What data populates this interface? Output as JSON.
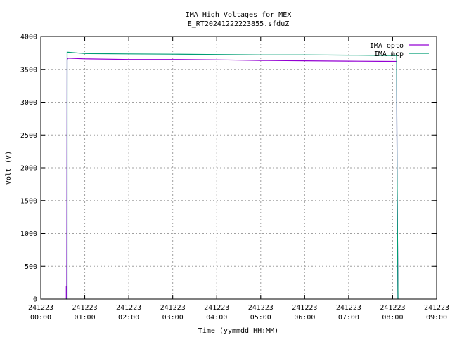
{
  "chart_data": {
    "type": "line",
    "title": "IMA High Voltages for MEX",
    "subtitle": "E_RT20241222223855.sfduZ",
    "xlabel": "Time (yymmdd HH:MM)",
    "ylabel": "Volt (V)",
    "xlim": [
      0,
      9
    ],
    "ylim": [
      0,
      4000
    ],
    "grid": true,
    "legend_position": "top-right",
    "x_ticks": [
      {
        "value": 0,
        "date": "241223",
        "time": "00:00"
      },
      {
        "value": 1,
        "date": "241223",
        "time": "01:00"
      },
      {
        "value": 2,
        "date": "241223",
        "time": "02:00"
      },
      {
        "value": 3,
        "date": "241223",
        "time": "03:00"
      },
      {
        "value": 4,
        "date": "241223",
        "time": "04:00"
      },
      {
        "value": 5,
        "date": "241223",
        "time": "05:00"
      },
      {
        "value": 6,
        "date": "241223",
        "time": "06:00"
      },
      {
        "value": 7,
        "date": "241223",
        "time": "07:00"
      },
      {
        "value": 8,
        "date": "241223",
        "time": "08:00"
      },
      {
        "value": 9,
        "date": "241223",
        "time": "09:00"
      }
    ],
    "y_ticks": [
      0,
      500,
      1000,
      1500,
      2000,
      2500,
      3000,
      3500,
      4000
    ],
    "series": [
      {
        "name": "IMA opto",
        "color": "#9400d3",
        "x": [
          0.58,
          0.58,
          0.59,
          0.59,
          0.6,
          0.62,
          1.0,
          2.0,
          3.0,
          4.0,
          5.0,
          6.0,
          7.0,
          8.0,
          8.09,
          8.1,
          8.12
        ],
        "y": [
          0,
          190,
          190,
          0,
          3650,
          3670,
          3660,
          3650,
          3650,
          3645,
          3635,
          3630,
          3625,
          3620,
          3620,
          2000,
          0
        ]
      },
      {
        "name": "IMA mcp",
        "color": "#009e73",
        "x": [
          0.58,
          0.6,
          0.6,
          0.62,
          1.0,
          2.0,
          3.0,
          4.0,
          5.0,
          6.0,
          7.0,
          8.0,
          8.09,
          8.1,
          8.12
        ],
        "y": [
          0,
          0,
          3760,
          3760,
          3740,
          3735,
          3730,
          3725,
          3720,
          3720,
          3715,
          3710,
          3710,
          2000,
          0
        ]
      }
    ]
  }
}
